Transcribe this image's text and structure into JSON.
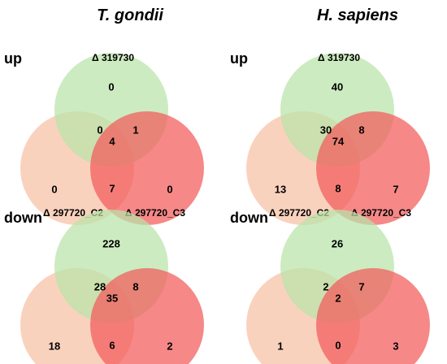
{
  "column_titles": [
    "T. gondii",
    "H. sapiens"
  ],
  "row_labels": [
    "up",
    "down"
  ],
  "set_labels": {
    "top": "Δ 319730",
    "left": "Δ 297720_C2",
    "right": "Δ 297720_C3"
  },
  "colors": {
    "top": "#b9e3a9",
    "left": "#f7c1a5",
    "right": "#f25a5a"
  },
  "panels": [
    {
      "column": 0,
      "row": 0,
      "show_set_labels": true,
      "counts": {
        "top_only": "0",
        "top_left": "0",
        "top_right": "1",
        "all_three": "4",
        "left_right": "7",
        "left_only": "0",
        "right_only": "0"
      }
    },
    {
      "column": 1,
      "row": 0,
      "show_set_labels": true,
      "counts": {
        "top_only": "40",
        "top_left": "30",
        "top_right": "8",
        "all_three": "74",
        "left_right": "8",
        "left_only": "13",
        "right_only": "7"
      }
    },
    {
      "column": 0,
      "row": 1,
      "show_set_labels": false,
      "counts": {
        "top_only": "228",
        "top_left": "28",
        "top_right": "8",
        "all_three": "35",
        "left_right": "6",
        "left_only": "18",
        "right_only": "2"
      }
    },
    {
      "column": 1,
      "row": 1,
      "show_set_labels": false,
      "counts": {
        "top_only": "26",
        "top_left": "2",
        "top_right": "7",
        "all_three": "2",
        "left_right": "0",
        "left_only": "1",
        "right_only": "3"
      }
    }
  ]
}
